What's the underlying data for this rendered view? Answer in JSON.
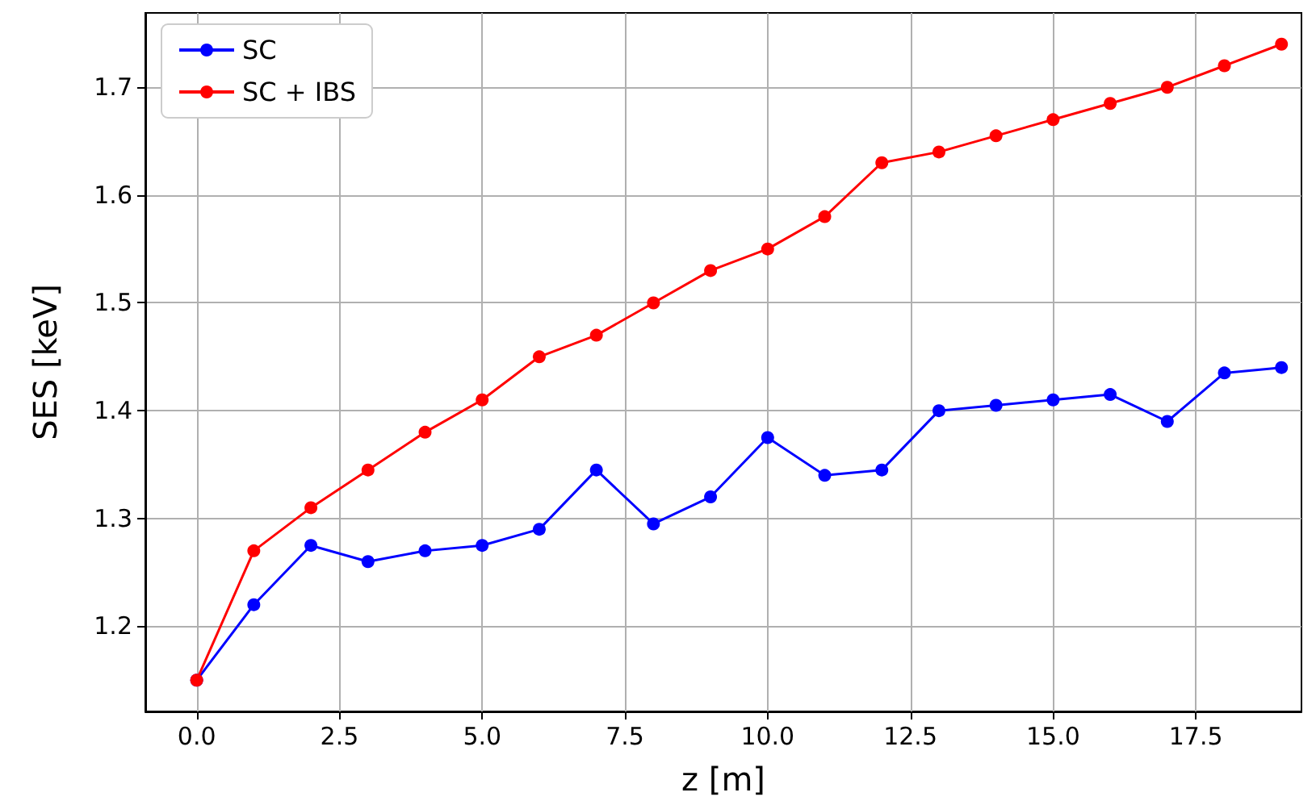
{
  "chart_data": {
    "type": "line",
    "xlabel": "z [m]",
    "ylabel": "SES [keV]",
    "x": [
      0,
      1,
      2,
      3,
      4,
      5,
      6,
      7,
      8,
      9,
      10,
      11,
      12,
      13,
      14,
      15,
      16,
      17,
      18,
      19
    ],
    "series": [
      {
        "name": "SC",
        "color": "#0000ff",
        "values": [
          1.15,
          1.22,
          1.275,
          1.26,
          1.27,
          1.275,
          1.29,
          1.345,
          1.295,
          1.32,
          1.375,
          1.34,
          1.345,
          1.4,
          1.405,
          1.41,
          1.415,
          1.39,
          1.435,
          1.44
        ]
      },
      {
        "name": "SC + IBS",
        "color": "#ff0000",
        "values": [
          1.15,
          1.27,
          1.31,
          1.345,
          1.38,
          1.41,
          1.45,
          1.47,
          1.5,
          1.53,
          1.55,
          1.58,
          1.63,
          1.64,
          1.655,
          1.67,
          1.685,
          1.7,
          1.72,
          1.74
        ]
      }
    ],
    "xlim": [
      -0.9,
      19.35
    ],
    "ylim": [
      1.121,
      1.769
    ],
    "xticks": [
      {
        "value": 0,
        "label": "0.0"
      },
      {
        "value": 2.5,
        "label": "2.5"
      },
      {
        "value": 5,
        "label": "5.0"
      },
      {
        "value": 7.5,
        "label": "7.5"
      },
      {
        "value": 10,
        "label": "10.0"
      },
      {
        "value": 12.5,
        "label": "12.5"
      },
      {
        "value": 15,
        "label": "15.0"
      },
      {
        "value": 17.5,
        "label": "17.5"
      }
    ],
    "yticks": [
      1.2,
      1.3,
      1.4,
      1.5,
      1.6,
      1.7
    ],
    "grid": true,
    "legend": "top left",
    "marker": "circle",
    "line_style": "solid"
  }
}
